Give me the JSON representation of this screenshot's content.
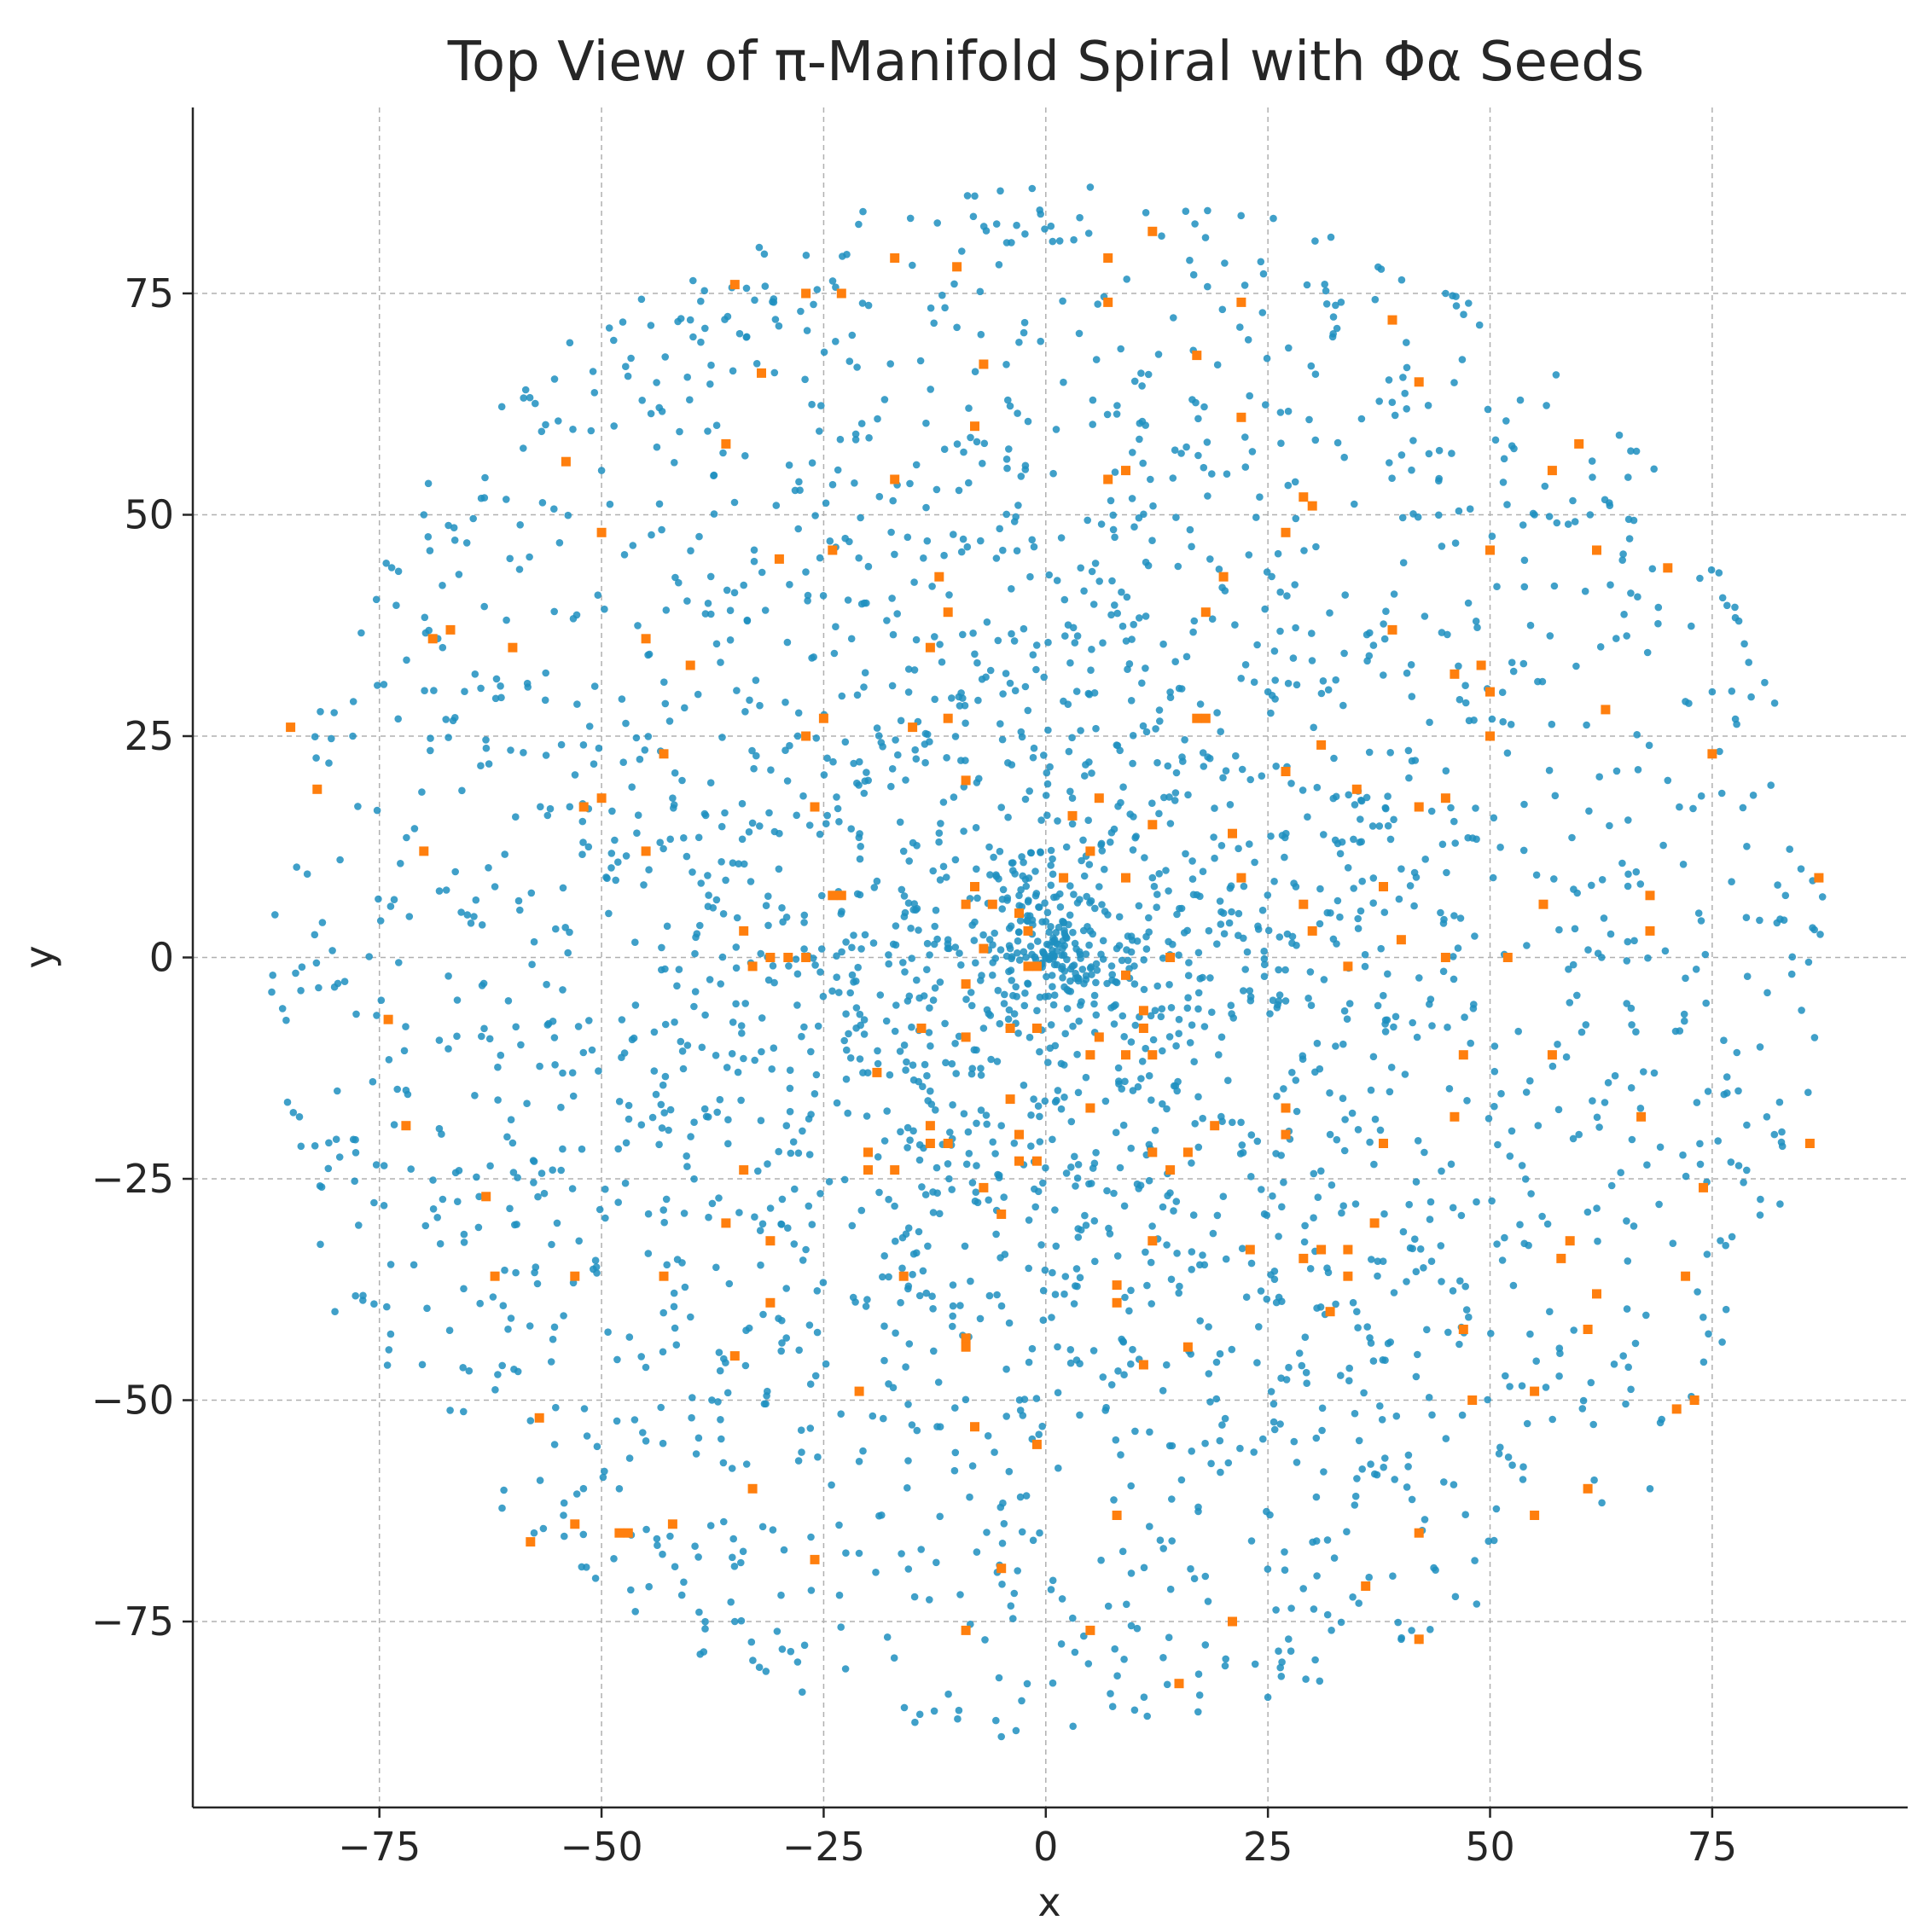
{
  "chart_data": {
    "type": "scatter",
    "title": "Top View of π-Manifold Spiral with Φα Seeds",
    "xlabel": "x",
    "ylabel": "y",
    "xlim": [
      -96,
      97
    ],
    "ylim": [
      -96,
      96
    ],
    "xticks": [
      -75,
      -50,
      -25,
      0,
      25,
      50,
      75
    ],
    "yticks": [
      -75,
      -50,
      -25,
      0,
      25,
      50,
      75
    ],
    "xtick_labels": [
      "−75",
      "−50",
      "−25",
      "0",
      "25",
      "50",
      "75"
    ],
    "ytick_labels": [
      "−75",
      "−50",
      "−25",
      "0",
      "25",
      "50",
      "75"
    ],
    "grid": true,
    "legend": "none",
    "series": [
      {
        "color": "#1f8fbf",
        "marker": "circle",
        "count": 3000,
        "extent_radius": 88,
        "density": "concentrated near origin, thinning outward",
        "sample_points": [
          [
            0,
            0
          ],
          [
            -2,
            -3
          ],
          [
            1,
            2
          ],
          [
            3,
            -1
          ],
          [
            -4,
            1
          ],
          [
            2,
            4
          ],
          [
            -1,
            -6
          ],
          [
            5,
            3
          ],
          [
            -6,
            -2
          ],
          [
            4,
            -5
          ],
          [
            -3,
            7
          ],
          [
            8,
            1
          ],
          [
            -8,
            4
          ],
          [
            6,
            8
          ],
          [
            -7,
            -8
          ],
          [
            10,
            -3
          ],
          [
            -11,
            2
          ],
          [
            12,
            9
          ],
          [
            -13,
            -10
          ],
          [
            15,
            -7
          ],
          [
            -16,
            12
          ],
          [
            3,
            18
          ],
          [
            -5,
            -19
          ],
          [
            20,
            5
          ],
          [
            -22,
            -4
          ],
          [
            -30,
            14
          ],
          [
            32,
            -20
          ],
          [
            25,
            30
          ],
          [
            -27,
            -33
          ],
          [
            40,
            10
          ],
          [
            -42,
            18
          ],
          [
            35,
            -40
          ],
          [
            -38,
            40
          ],
          [
            50,
            25
          ],
          [
            -55,
            -30
          ],
          [
            60,
            -20
          ],
          [
            -62,
            8
          ],
          [
            55,
            50
          ],
          [
            -50,
            55
          ],
          [
            -48,
            -60
          ],
          [
            65,
            -45
          ],
          [
            70,
            20
          ],
          [
            -72,
            -15
          ],
          [
            75,
            30
          ],
          [
            -78,
            25
          ],
          [
            85,
            10
          ],
          [
            -87,
            -2
          ],
          [
            82,
            -20
          ],
          [
            -84,
            -18
          ],
          [
            5,
            87
          ],
          [
            -8,
            86
          ],
          [
            -5,
            -88
          ],
          [
            10,
            -85
          ],
          [
            45,
            75
          ],
          [
            -40,
            72
          ],
          [
            -35,
            -75
          ],
          [
            40,
            -77
          ],
          [
            78,
            38
          ],
          [
            -80,
            -40
          ],
          [
            -70,
            50
          ],
          [
            68,
            -60
          ]
        ]
      },
      {
        "name": "Φα Seeds",
        "color": "#ff7f0e",
        "marker": "square",
        "points": [
          [
            12,
            82
          ],
          [
            7,
            79
          ],
          [
            -17,
            79
          ],
          [
            -10,
            78
          ],
          [
            -35,
            76
          ],
          [
            -27,
            75
          ],
          [
            -23,
            75
          ],
          [
            7,
            74
          ],
          [
            22,
            74
          ],
          [
            39,
            72
          ],
          [
            17,
            68
          ],
          [
            -7,
            67
          ],
          [
            -32,
            66
          ],
          [
            42,
            65
          ],
          [
            22,
            61
          ],
          [
            -8,
            60
          ],
          [
            60,
            58
          ],
          [
            -36,
            58
          ],
          [
            -54,
            56
          ],
          [
            57,
            55
          ],
          [
            9,
            55
          ],
          [
            -17,
            54
          ],
          [
            7,
            54
          ],
          [
            29,
            52
          ],
          [
            30,
            51
          ],
          [
            -50,
            48
          ],
          [
            27,
            48
          ],
          [
            -24,
            46
          ],
          [
            -30,
            45
          ],
          [
            62,
            46
          ],
          [
            50,
            46
          ],
          [
            70,
            44
          ],
          [
            -12,
            43
          ],
          [
            20,
            43
          ],
          [
            -11,
            39
          ],
          [
            18,
            39
          ],
          [
            39,
            37
          ],
          [
            -67,
            37
          ],
          [
            -69,
            36
          ],
          [
            -45,
            36
          ],
          [
            -13,
            35
          ],
          [
            -60,
            35
          ],
          [
            -40,
            33
          ],
          [
            49,
            33
          ],
          [
            46,
            32
          ],
          [
            50,
            30
          ],
          [
            -25,
            27
          ],
          [
            -11,
            27
          ],
          [
            18,
            27
          ],
          [
            17,
            27
          ],
          [
            63,
            28
          ],
          [
            -85,
            26
          ],
          [
            -15,
            26
          ],
          [
            -27,
            25
          ],
          [
            50,
            25
          ],
          [
            31,
            24
          ],
          [
            -43,
            23
          ],
          [
            75,
            23
          ],
          [
            27,
            21
          ],
          [
            -9,
            20
          ],
          [
            35,
            19
          ],
          [
            -50,
            18
          ],
          [
            45,
            18
          ],
          [
            -82,
            19
          ],
          [
            6,
            18
          ],
          [
            -52,
            17
          ],
          [
            -26,
            17
          ],
          [
            42,
            17
          ],
          [
            3,
            16
          ],
          [
            12,
            15
          ],
          [
            21,
            14
          ],
          [
            5,
            12
          ],
          [
            -45,
            12
          ],
          [
            -70,
            12
          ],
          [
            9,
            9
          ],
          [
            22,
            9
          ],
          [
            87,
            9
          ],
          [
            2,
            9
          ],
          [
            -8,
            8
          ],
          [
            38,
            8
          ],
          [
            68,
            7
          ],
          [
            -24,
            7
          ],
          [
            -23,
            7
          ],
          [
            -9,
            6
          ],
          [
            -6,
            6
          ],
          [
            56,
            6
          ],
          [
            29,
            6
          ],
          [
            -3,
            5
          ],
          [
            -34,
            3
          ],
          [
            68,
            3
          ],
          [
            40,
            2
          ],
          [
            30,
            3
          ],
          [
            -2,
            3
          ],
          [
            -7,
            1
          ],
          [
            -29,
            0
          ],
          [
            -31,
            0
          ],
          [
            -27,
            0
          ],
          [
            14,
            0
          ],
          [
            45,
            0
          ],
          [
            52,
            0
          ],
          [
            -33,
            -1
          ],
          [
            -1,
            -1
          ],
          [
            -2,
            -1
          ],
          [
            34,
            -1
          ],
          [
            9,
            -2
          ],
          [
            -9,
            -3
          ],
          [
            11,
            -6
          ],
          [
            -74,
            -7
          ],
          [
            -4,
            -8
          ],
          [
            11,
            -8
          ],
          [
            -14,
            -8
          ],
          [
            -1,
            -8
          ],
          [
            6,
            -9
          ],
          [
            -9,
            -9
          ],
          [
            57,
            -11
          ],
          [
            47,
            -11
          ],
          [
            5,
            -11
          ],
          [
            9,
            -11
          ],
          [
            12,
            -11
          ],
          [
            -19,
            -13
          ],
          [
            -4,
            -16
          ],
          [
            5,
            -17
          ],
          [
            27,
            -17
          ],
          [
            46,
            -18
          ],
          [
            67,
            -18
          ],
          [
            -13,
            -19
          ],
          [
            -72,
            -19
          ],
          [
            -3,
            -20
          ],
          [
            -13,
            -21
          ],
          [
            19,
            -19
          ],
          [
            27,
            -20
          ],
          [
            -11,
            -21
          ],
          [
            38,
            -21
          ],
          [
            -20,
            -22
          ],
          [
            16,
            -22
          ],
          [
            12,
            -22
          ],
          [
            86,
            -21
          ],
          [
            -1,
            -23
          ],
          [
            14,
            -24
          ],
          [
            -34,
            -24
          ],
          [
            -17,
            -24
          ],
          [
            -3,
            -23
          ],
          [
            -20,
            -24
          ],
          [
            -7,
            -26
          ],
          [
            -63,
            -27
          ],
          [
            74,
            -26
          ],
          [
            -5,
            -29
          ],
          [
            -36,
            -30
          ],
          [
            37,
            -30
          ],
          [
            -31,
            -32
          ],
          [
            12,
            -32
          ],
          [
            23,
            -33
          ],
          [
            31,
            -33
          ],
          [
            29,
            -34
          ],
          [
            34,
            -33
          ],
          [
            59,
            -32
          ],
          [
            58,
            -34
          ],
          [
            -53,
            -36
          ],
          [
            -62,
            -36
          ],
          [
            -16,
            -36
          ],
          [
            34,
            -36
          ],
          [
            -43,
            -36
          ],
          [
            72,
            -36
          ],
          [
            8,
            -37
          ],
          [
            62,
            -38
          ],
          [
            -31,
            -39
          ],
          [
            8,
            -39
          ],
          [
            32,
            -40
          ],
          [
            47,
            -42
          ],
          [
            61,
            -42
          ],
          [
            -9,
            -43
          ],
          [
            -9,
            -44
          ],
          [
            -35,
            -45
          ],
          [
            11,
            -46
          ],
          [
            16,
            -44
          ],
          [
            -21,
            -49
          ],
          [
            55,
            -49
          ],
          [
            48,
            -50
          ],
          [
            71,
            -51
          ],
          [
            73,
            -50
          ],
          [
            -57,
            -52
          ],
          [
            -8,
            -53
          ],
          [
            -1,
            -55
          ],
          [
            61,
            -60
          ],
          [
            -33,
            -60
          ],
          [
            -53,
            -64
          ],
          [
            -42,
            -64
          ],
          [
            55,
            -63
          ],
          [
            8,
            -63
          ],
          [
            -58,
            -66
          ],
          [
            42,
            -65
          ],
          [
            -48,
            -65
          ],
          [
            -47,
            -65
          ],
          [
            -26,
            -68
          ],
          [
            -5,
            -69
          ],
          [
            36,
            -71
          ],
          [
            -9,
            -76
          ],
          [
            5,
            -76
          ],
          [
            21,
            -75
          ],
          [
            42,
            -77
          ],
          [
            15,
            -82
          ]
        ]
      }
    ]
  }
}
